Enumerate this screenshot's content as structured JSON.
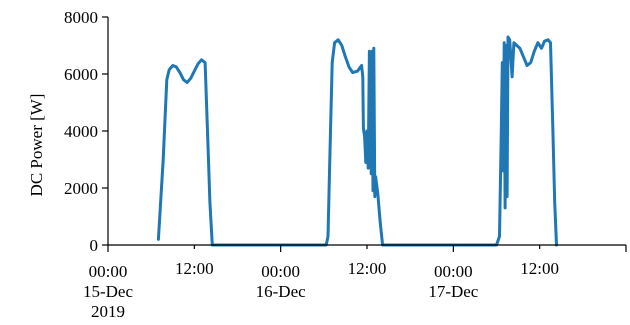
{
  "chart_data": {
    "type": "line",
    "title": "",
    "xlabel": "",
    "ylabel": "DC Power [W]",
    "ylim": [
      0,
      8000
    ],
    "xlim": [
      "2019-12-15T00:00",
      "2019-12-18T00:00"
    ],
    "grid": false,
    "legend": "none",
    "yticks": [
      {
        "value": 0,
        "label": "0"
      },
      {
        "value": 2000,
        "label": "2000"
      },
      {
        "value": 4000,
        "label": "4000"
      },
      {
        "value": 6000,
        "label": "6000"
      },
      {
        "value": 8000,
        "label": "8000"
      }
    ],
    "xticks_major": [
      {
        "time": "2019-12-15T00:00",
        "lines": [
          "00:00",
          "15-Dec",
          "2019"
        ]
      },
      {
        "time": "2019-12-16T00:00",
        "lines": [
          "00:00",
          "16-Dec"
        ]
      },
      {
        "time": "2019-12-17T00:00",
        "lines": [
          "00:00",
          "17-Dec"
        ]
      },
      {
        "time": "2019-12-18T00:00",
        "lines": []
      }
    ],
    "xticks_minor": [
      {
        "time": "2019-12-15T12:00",
        "label": "12:00"
      },
      {
        "time": "2019-12-16T12:00",
        "label": "12:00"
      },
      {
        "time": "2019-12-17T12:00",
        "label": "12:00"
      }
    ],
    "series": [
      {
        "name": "",
        "color": "#1f77b4",
        "points": [
          [
            "2019-12-15T07:00",
            200
          ],
          [
            "2019-12-15T07:40",
            3000
          ],
          [
            "2019-12-15T08:10",
            5800
          ],
          [
            "2019-12-15T08:30",
            6150
          ],
          [
            "2019-12-15T09:00",
            6300
          ],
          [
            "2019-12-15T09:30",
            6250
          ],
          [
            "2019-12-15T10:00",
            6050
          ],
          [
            "2019-12-15T10:30",
            5800
          ],
          [
            "2019-12-15T11:00",
            5700
          ],
          [
            "2019-12-15T11:30",
            5850
          ],
          [
            "2019-12-15T12:00",
            6100
          ],
          [
            "2019-12-15T12:30",
            6350
          ],
          [
            "2019-12-15T13:00",
            6500
          ],
          [
            "2019-12-15T13:30",
            6400
          ],
          [
            "2019-12-15T13:50",
            4000
          ],
          [
            "2019-12-15T14:10",
            1500
          ],
          [
            "2019-12-15T14:30",
            0
          ],
          [
            "2019-12-16T06:20",
            0
          ],
          [
            "2019-12-16T06:35",
            300
          ],
          [
            "2019-12-16T06:50",
            3000
          ],
          [
            "2019-12-16T07:10",
            6400
          ],
          [
            "2019-12-16T07:30",
            7100
          ],
          [
            "2019-12-16T08:00",
            7200
          ],
          [
            "2019-12-16T08:30",
            7000
          ],
          [
            "2019-12-16T09:00",
            6600
          ],
          [
            "2019-12-16T09:30",
            6250
          ],
          [
            "2019-12-16T10:00",
            6050
          ],
          [
            "2019-12-16T10:40",
            6100
          ],
          [
            "2019-12-16T11:15",
            6300
          ],
          [
            "2019-12-16T11:25",
            5900
          ],
          [
            "2019-12-16T11:30",
            4100
          ],
          [
            "2019-12-16T11:40",
            3800
          ],
          [
            "2019-12-16T11:50",
            2900
          ],
          [
            "2019-12-16T12:00",
            4000
          ],
          [
            "2019-12-16T12:10",
            2700
          ],
          [
            "2019-12-16T12:20",
            6800
          ],
          [
            "2019-12-16T12:28",
            6600
          ],
          [
            "2019-12-16T12:35",
            2500
          ],
          [
            "2019-12-16T12:42",
            6800
          ],
          [
            "2019-12-16T12:50",
            1900
          ],
          [
            "2019-12-16T12:57",
            6900
          ],
          [
            "2019-12-16T13:05",
            1700
          ],
          [
            "2019-12-16T13:12",
            2400
          ],
          [
            "2019-12-16T13:30",
            1800
          ],
          [
            "2019-12-16T13:50",
            800
          ],
          [
            "2019-12-16T14:10",
            0
          ],
          [
            "2019-12-17T06:00",
            0
          ],
          [
            "2019-12-17T06:25",
            300
          ],
          [
            "2019-12-17T06:40",
            4000
          ],
          [
            "2019-12-17T06:48",
            6400
          ],
          [
            "2019-12-17T06:56",
            2600
          ],
          [
            "2019-12-17T07:04",
            7100
          ],
          [
            "2019-12-17T07:12",
            1300
          ],
          [
            "2019-12-17T07:20",
            7000
          ],
          [
            "2019-12-17T07:28",
            1700
          ],
          [
            "2019-12-17T07:36",
            7300
          ],
          [
            "2019-12-17T07:50",
            7200
          ],
          [
            "2019-12-17T08:10",
            5900
          ],
          [
            "2019-12-17T08:25",
            7100
          ],
          [
            "2019-12-17T08:50",
            7000
          ],
          [
            "2019-12-17T09:15",
            6900
          ],
          [
            "2019-12-17T09:45",
            6600
          ],
          [
            "2019-12-17T10:15",
            6300
          ],
          [
            "2019-12-17T10:45",
            6400
          ],
          [
            "2019-12-17T11:15",
            6800
          ],
          [
            "2019-12-17T11:45",
            7100
          ],
          [
            "2019-12-17T12:15",
            6900
          ],
          [
            "2019-12-17T12:40",
            7150
          ],
          [
            "2019-12-17T13:10",
            7200
          ],
          [
            "2019-12-17T13:30",
            7100
          ],
          [
            "2019-12-17T13:50",
            4000
          ],
          [
            "2019-12-17T14:05",
            1500
          ],
          [
            "2019-12-17T14:20",
            0
          ]
        ]
      }
    ]
  }
}
